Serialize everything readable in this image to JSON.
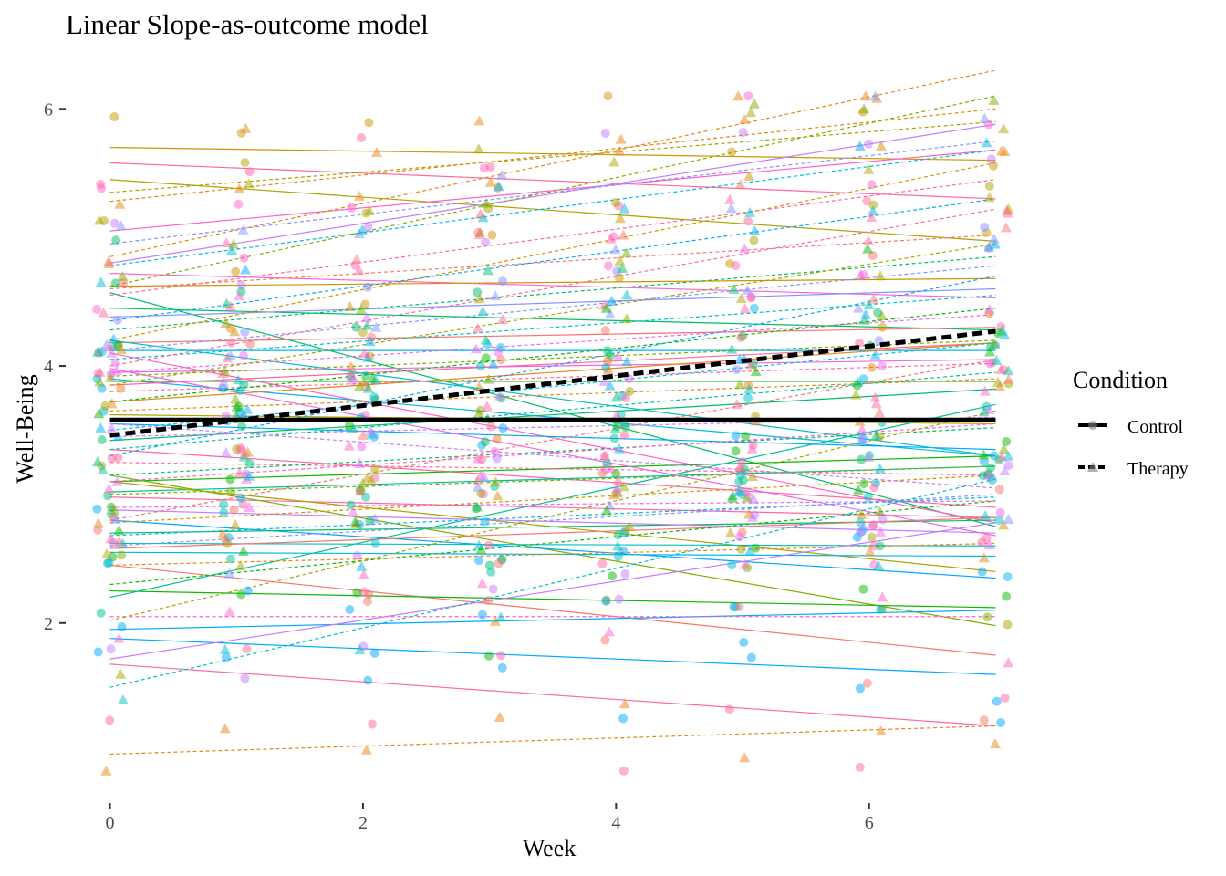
{
  "chart_data": {
    "type": "line",
    "title": "Linear Slope-as-outcome model",
    "xlabel": "Week",
    "ylabel": "Well-Being",
    "xlim": [
      -0.35,
      7.35
    ],
    "ylim": [
      0.6,
      6.35
    ],
    "x_ticks": [
      0,
      2,
      4,
      6
    ],
    "y_ticks": [
      2,
      4,
      6
    ],
    "grid": false,
    "legend": {
      "title": "Condition",
      "position": "right",
      "entries": [
        {
          "label": "Control",
          "line": "solid",
          "shape": "circle"
        },
        {
          "label": "Therapy",
          "line": "dashed",
          "shape": "triangle"
        }
      ]
    },
    "series": [
      {
        "name": "Control",
        "x": [
          0,
          7
        ],
        "y": [
          3.58,
          3.58
        ],
        "line": "solid",
        "color": "#000000"
      },
      {
        "name": "Therapy",
        "x": [
          0,
          7
        ],
        "y": [
          3.46,
          4.27
        ],
        "line": "dashed",
        "color": "#000000"
      }
    ],
    "individual_lines": {
      "x": [
        0,
        7
      ],
      "palette": [
        "#F8766D",
        "#E68613",
        "#CD9600",
        "#ABA300",
        "#7CAE00",
        "#0CB702",
        "#00BE67",
        "#00C19A",
        "#00BFC4",
        "#00B8E7",
        "#00A9FF",
        "#8494FF",
        "#C77CFF",
        "#ED68ED",
        "#FF61CC",
        "#FF68A1"
      ],
      "control": [
        [
          5.7,
          5.6,
          2
        ],
        [
          5.58,
          5.3,
          15
        ],
        [
          5.45,
          4.97,
          3
        ],
        [
          5.05,
          5.68,
          14
        ],
        [
          4.8,
          5.88,
          12
        ],
        [
          4.72,
          4.53,
          14
        ],
        [
          4.62,
          4.68,
          2
        ],
        [
          4.57,
          2.75,
          6
        ],
        [
          4.45,
          4.28,
          6
        ],
        [
          4.38,
          4.6,
          11
        ],
        [
          4.18,
          4.3,
          0
        ],
        [
          4.1,
          2.78,
          14
        ],
        [
          4.12,
          4.12,
          9
        ],
        [
          3.95,
          4.05,
          13
        ],
        [
          3.9,
          3.3,
          9
        ],
        [
          3.88,
          3.88,
          5
        ],
        [
          3.85,
          4.18,
          15
        ],
        [
          3.72,
          4.18,
          1
        ],
        [
          3.62,
          3.55,
          3
        ],
        [
          3.55,
          3.35,
          10
        ],
        [
          3.42,
          3.82,
          6
        ],
        [
          3.35,
          2.9,
          15
        ],
        [
          3.1,
          3.3,
          5
        ],
        [
          3.02,
          3.22,
          7
        ],
        [
          2.98,
          2.82,
          15
        ],
        [
          3.15,
          1.98,
          4
        ],
        [
          3.1,
          2.4,
          3
        ],
        [
          2.8,
          2.35,
          10
        ],
        [
          2.7,
          2.8,
          6
        ],
        [
          2.62,
          2.6,
          8
        ],
        [
          2.58,
          2.82,
          0
        ],
        [
          2.55,
          2.52,
          9
        ],
        [
          2.45,
          1.75,
          0
        ],
        [
          2.25,
          2.12,
          5
        ],
        [
          2.2,
          3.7,
          7
        ],
        [
          1.95,
          2.1,
          10
        ],
        [
          1.88,
          1.6,
          10
        ],
        [
          1.72,
          2.78,
          12
        ],
        [
          1.68,
          1.2,
          15
        ],
        [
          4.2,
          3.3,
          8
        ],
        [
          2.88,
          2.7,
          12
        ],
        [
          3.98,
          2.68,
          13
        ]
      ],
      "therapy": [
        [
          5.35,
          5.9,
          3
        ],
        [
          5.28,
          6.0,
          1
        ],
        [
          4.95,
          5.75,
          11
        ],
        [
          4.85,
          6.3,
          1
        ],
        [
          4.78,
          5.68,
          9
        ],
        [
          4.62,
          6.1,
          4
        ],
        [
          4.55,
          5.45,
          15
        ],
        [
          4.6,
          5.02,
          0
        ],
        [
          4.35,
          5.3,
          10
        ],
        [
          4.28,
          4.85,
          6
        ],
        [
          4.2,
          5.58,
          2
        ],
        [
          4.12,
          4.78,
          11
        ],
        [
          4.05,
          4.55,
          8
        ],
        [
          4.0,
          5.22,
          15
        ],
        [
          3.95,
          4.4,
          13
        ],
        [
          3.85,
          4.95,
          3
        ],
        [
          3.8,
          4.02,
          15
        ],
        [
          3.72,
          4.45,
          5
        ],
        [
          3.65,
          3.9,
          1
        ],
        [
          3.5,
          4.18,
          9
        ],
        [
          3.45,
          3.6,
          12
        ],
        [
          3.35,
          3.95,
          7
        ],
        [
          3.3,
          4.7,
          10
        ],
        [
          3.25,
          3.15,
          15
        ],
        [
          3.15,
          3.52,
          6
        ],
        [
          3.1,
          3.55,
          14
        ],
        [
          3.0,
          3.22,
          4
        ],
        [
          2.9,
          2.95,
          13
        ],
        [
          2.78,
          3.15,
          2
        ],
        [
          2.68,
          2.98,
          9
        ],
        [
          2.6,
          3.0,
          11
        ],
        [
          2.45,
          2.62,
          1
        ],
        [
          2.3,
          2.95,
          5
        ],
        [
          2.05,
          2.05,
          14
        ],
        [
          2.02,
          3.65,
          3
        ],
        [
          1.5,
          3.12,
          8
        ],
        [
          0.98,
          1.2,
          1
        ],
        [
          2.8,
          4.05,
          0
        ],
        [
          3.55,
          3.05,
          12
        ],
        [
          3.92,
          4.2,
          4
        ]
      ]
    },
    "point_seed": 12345
  }
}
